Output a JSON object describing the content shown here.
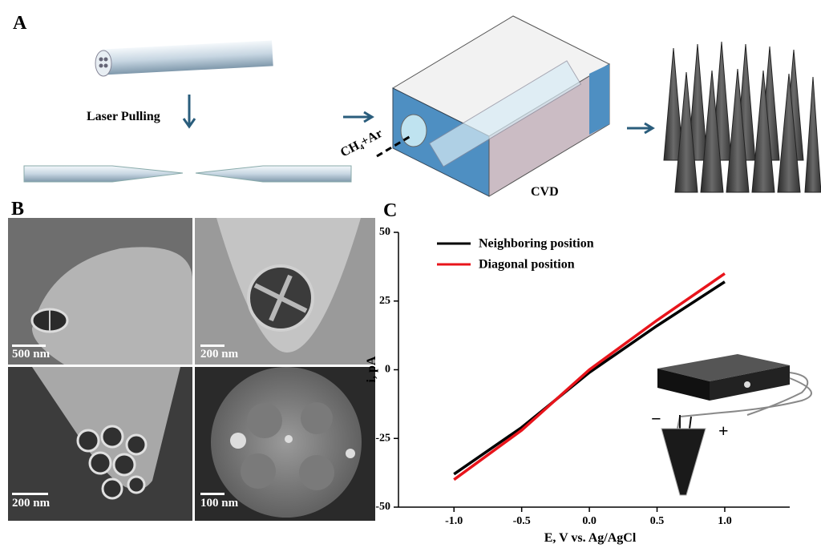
{
  "panel_a": {
    "label": "A",
    "step_label": "Laser Pulling",
    "gas_label": "CH₄+Ar",
    "cvd_label": "CVD"
  },
  "panel_b": {
    "label": "B",
    "scale_bars": [
      "500 nm",
      "200 nm",
      "200 nm",
      "100 nm"
    ]
  },
  "chart_data": {
    "type": "line",
    "label": "C",
    "xlabel": "E, V vs. Ag/AgCl",
    "ylabel": "i, pA",
    "x": [
      -1.0,
      -0.5,
      0.0,
      0.5,
      1.0
    ],
    "series": [
      {
        "name": "Neighboring position",
        "color": "#000000",
        "values": [
          -38,
          -21,
          -1,
          16,
          32
        ]
      },
      {
        "name": "Diagonal position",
        "color": "#e8141b",
        "values": [
          -40,
          -22,
          0,
          18,
          35
        ]
      }
    ],
    "xlim": [
      -1.41,
      1.48
    ],
    "ylim": [
      -50,
      50
    ],
    "xticks": [
      {
        "value": -1.0,
        "label": "-1.0"
      },
      {
        "value": -0.5,
        "label": "-0.5"
      },
      {
        "value": 0.0,
        "label": "0.0"
      },
      {
        "value": 0.5,
        "label": "0.5"
      },
      {
        "value": 1.0,
        "label": "1.0"
      }
    ],
    "yticks": [
      -50,
      -25,
      0,
      25,
      50
    ],
    "legend": "upper left"
  }
}
